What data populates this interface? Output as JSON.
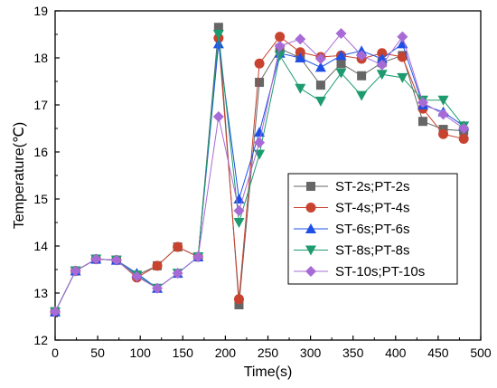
{
  "chart_data": {
    "type": "line",
    "xlabel": "Time(s)",
    "ylabel": "Temperature(℃)",
    "xlim": [
      0,
      500
    ],
    "ylim": [
      12,
      19
    ],
    "xticks": [
      0,
      50,
      100,
      150,
      200,
      250,
      300,
      350,
      400,
      450,
      500
    ],
    "yticks": [
      12,
      13,
      14,
      15,
      16,
      17,
      18,
      19
    ],
    "grid": false,
    "legend_position": "center-right",
    "x": [
      0,
      24,
      48,
      72,
      96,
      120,
      144,
      168,
      192,
      216,
      240,
      264,
      288,
      312,
      336,
      360,
      384,
      408,
      432,
      456,
      480
    ],
    "series": [
      {
        "name": "ST-2s;PT-2s",
        "color": "#666666",
        "marker": "square",
        "values": [
          12.6,
          13.47,
          13.72,
          13.7,
          13.38,
          13.58,
          13.98,
          13.77,
          18.65,
          12.75,
          17.48,
          18.2,
          18.0,
          17.42,
          17.88,
          17.62,
          17.9,
          18.05,
          16.65,
          16.48,
          16.45
        ]
      },
      {
        "name": "ST-4s;PT-4s",
        "color": "#C8432F",
        "marker": "circle",
        "values": [
          12.6,
          13.47,
          13.72,
          13.7,
          13.33,
          13.58,
          13.98,
          13.77,
          18.42,
          12.87,
          17.88,
          18.45,
          18.12,
          18.02,
          18.05,
          17.98,
          18.1,
          18.02,
          16.92,
          16.38,
          16.28
        ]
      },
      {
        "name": "ST-6s;PT-6s",
        "color": "#1E50E6",
        "marker": "triangle-up",
        "values": [
          12.6,
          13.47,
          13.72,
          13.7,
          13.42,
          13.1,
          13.42,
          13.77,
          18.3,
          15.0,
          16.42,
          18.1,
          18.0,
          17.8,
          18.05,
          18.15,
          17.98,
          18.3,
          17.0,
          16.85,
          16.55
        ]
      },
      {
        "name": "ST-8s;PT-8s",
        "color": "#1E9B6E",
        "marker": "triangle-down",
        "values": [
          12.6,
          13.47,
          13.72,
          13.7,
          13.38,
          13.1,
          13.42,
          13.77,
          18.5,
          14.5,
          15.95,
          18.05,
          17.35,
          17.08,
          17.68,
          17.2,
          17.65,
          17.58,
          17.1,
          17.1,
          16.55
        ]
      },
      {
        "name": "ST-10s;PT-10s",
        "color": "#A86BD6",
        "marker": "diamond",
        "values": [
          12.6,
          13.47,
          13.72,
          13.7,
          13.35,
          13.1,
          13.42,
          13.77,
          16.75,
          14.75,
          16.2,
          18.25,
          18.4,
          17.98,
          18.52,
          18.05,
          17.85,
          18.45,
          17.05,
          16.8,
          16.5
        ]
      }
    ]
  }
}
